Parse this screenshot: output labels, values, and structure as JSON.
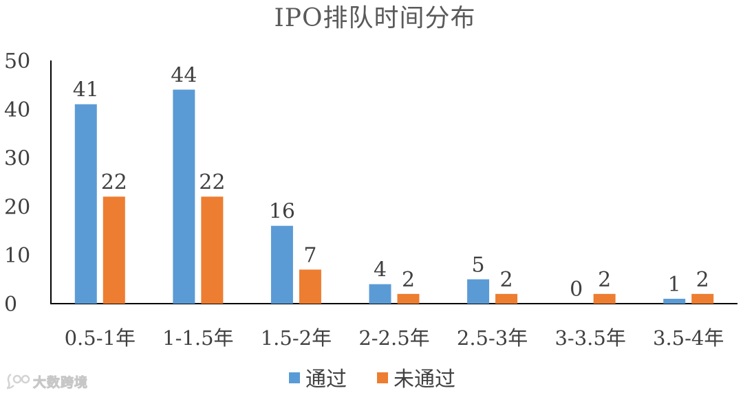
{
  "chart_data": {
    "type": "bar",
    "title": "IPO排队时间分布",
    "categories": [
      "0.5-1年",
      "1-1.5年",
      "1.5-2年",
      "2-2.5年",
      "2.5-3年",
      "3-3.5年",
      "3.5-4年"
    ],
    "series": [
      {
        "name": "通过",
        "color": "#5b9bd5",
        "values": [
          41,
          44,
          16,
          4,
          5,
          0,
          1
        ]
      },
      {
        "name": "未通过",
        "color": "#ed7d31",
        "values": [
          22,
          22,
          7,
          2,
          2,
          2,
          2
        ]
      }
    ],
    "ylim": [
      0,
      50
    ],
    "yticks": [
      0,
      10,
      20,
      30,
      40,
      50
    ],
    "grid": false,
    "data_labels": true,
    "legend_position": "bottom"
  },
  "watermark": {
    "text": "大数跨境",
    "icon": "chat-bubble-logo-icon"
  }
}
